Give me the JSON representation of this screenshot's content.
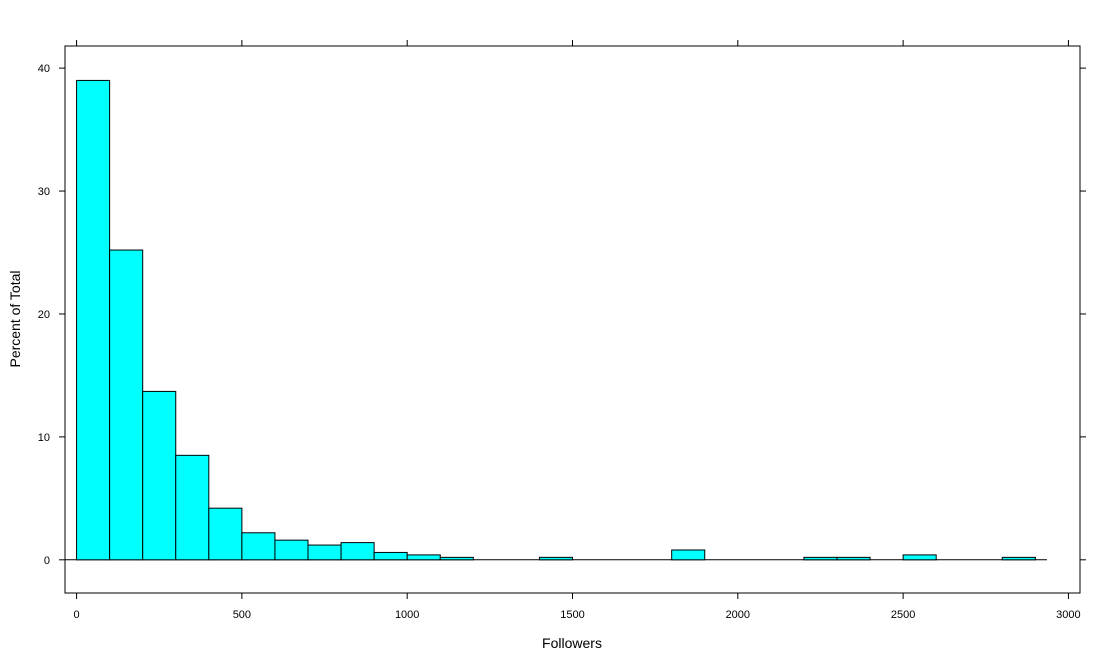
{
  "chart_data": {
    "type": "bar",
    "subtype": "histogram",
    "xlabel": "Followers",
    "ylabel": "Percent of Total",
    "xlim": [
      -35,
      3035
    ],
    "ylim": [
      -2.7,
      41.8
    ],
    "bin_width": 100,
    "x_ticks": [
      0,
      500,
      1000,
      1500,
      2000,
      2500,
      3000
    ],
    "y_ticks": [
      0,
      10,
      20,
      30,
      40
    ],
    "colors": {
      "bar_fill": "#00FFFF",
      "bar_stroke": "#000000"
    },
    "bins": [
      {
        "start": 0,
        "end": 100,
        "value": 39.0
      },
      {
        "start": 100,
        "end": 200,
        "value": 25.2
      },
      {
        "start": 200,
        "end": 300,
        "value": 13.7
      },
      {
        "start": 300,
        "end": 400,
        "value": 8.5
      },
      {
        "start": 400,
        "end": 500,
        "value": 4.2
      },
      {
        "start": 500,
        "end": 600,
        "value": 2.2
      },
      {
        "start": 600,
        "end": 700,
        "value": 1.6
      },
      {
        "start": 700,
        "end": 800,
        "value": 1.2
      },
      {
        "start": 800,
        "end": 900,
        "value": 1.4
      },
      {
        "start": 900,
        "end": 1000,
        "value": 0.6
      },
      {
        "start": 1000,
        "end": 1100,
        "value": 0.4
      },
      {
        "start": 1100,
        "end": 1200,
        "value": 0.2
      },
      {
        "start": 1200,
        "end": 1300,
        "value": 0
      },
      {
        "start": 1300,
        "end": 1400,
        "value": 0
      },
      {
        "start": 1400,
        "end": 1500,
        "value": 0.2
      },
      {
        "start": 1500,
        "end": 1600,
        "value": 0
      },
      {
        "start": 1600,
        "end": 1700,
        "value": 0
      },
      {
        "start": 1700,
        "end": 1800,
        "value": 0
      },
      {
        "start": 1800,
        "end": 1900,
        "value": 0.8
      },
      {
        "start": 1900,
        "end": 2000,
        "value": 0
      },
      {
        "start": 2000,
        "end": 2100,
        "value": 0
      },
      {
        "start": 2100,
        "end": 2200,
        "value": 0
      },
      {
        "start": 2200,
        "end": 2300,
        "value": 0.2
      },
      {
        "start": 2300,
        "end": 2400,
        "value": 0.2
      },
      {
        "start": 2400,
        "end": 2500,
        "value": 0
      },
      {
        "start": 2500,
        "end": 2600,
        "value": 0.4
      },
      {
        "start": 2600,
        "end": 2700,
        "value": 0
      },
      {
        "start": 2700,
        "end": 2800,
        "value": 0
      },
      {
        "start": 2800,
        "end": 2900,
        "value": 0.2
      },
      {
        "start": 2900,
        "end": 3000,
        "value": 0
      }
    ],
    "baseline_range": [
      -35,
      2935
    ]
  }
}
